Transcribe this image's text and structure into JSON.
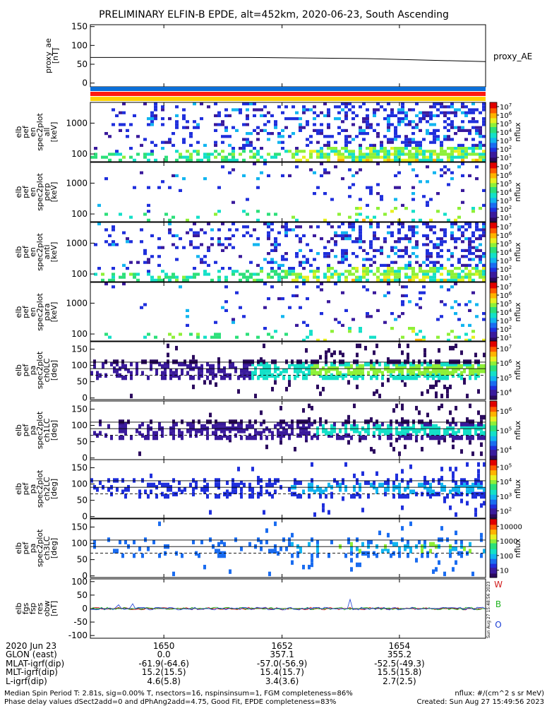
{
  "title": "PRELIMINARY ELFIN-B EPDE, alt=452km, 2020-06-23, South Ascending",
  "proxy_ae": {
    "ylabel_lines": [
      "proxy_ae",
      "[nT]"
    ],
    "yticks": [
      "150",
      "100",
      "50",
      "0"
    ],
    "legend": "proxy_AE",
    "ylim": [
      -10,
      155
    ],
    "line_points": [
      [
        0,
        68
      ],
      [
        0.4,
        68
      ],
      [
        0.7,
        65
      ],
      [
        1,
        57
      ]
    ]
  },
  "status_bars": [
    "#0a6fd8",
    "#ff1a10",
    "#ffd000"
  ],
  "energy_panels": [
    {
      "ylabel_lines": [
        "elb",
        "pef",
        "en",
        "spec2plot",
        "all",
        "[keV]"
      ],
      "yticks": [
        "1000",
        "100"
      ],
      "cbar_label": "nflux",
      "cbar_ticks": [
        "10^1",
        "10^2",
        "10^3",
        "10^4",
        "10^5",
        "10^6",
        "10^7"
      ],
      "density": 0.9,
      "green": 0.85
    },
    {
      "ylabel_lines": [
        "elb",
        "pef",
        "en",
        "spec2plot",
        "perp",
        "[keV]"
      ],
      "yticks": [
        "1000",
        "100"
      ],
      "cbar_label": "nflux",
      "cbar_ticks": [
        "10^1",
        "10^2",
        "10^3",
        "10^4",
        "10^5",
        "10^6",
        "10^7"
      ],
      "density": 0.2,
      "green": 0.15
    },
    {
      "ylabel_lines": [
        "elb",
        "pef",
        "en",
        "spec2plot",
        "anti",
        "[keV]"
      ],
      "yticks": [
        "1000",
        "100"
      ],
      "cbar_label": "nflux",
      "cbar_ticks": [
        "10^1",
        "10^2",
        "10^3",
        "10^4",
        "10^5",
        "10^6",
        "10^7"
      ],
      "density": 0.85,
      "green": 0.8
    },
    {
      "ylabel_lines": [
        "elb",
        "pef",
        "en",
        "spec2plot",
        "para",
        "[keV]"
      ],
      "yticks": [
        "1000",
        "100"
      ],
      "cbar_label": "nflux",
      "cbar_ticks": [
        "10^1",
        "10^2",
        "10^3",
        "10^4",
        "10^5",
        "10^6",
        "10^7"
      ],
      "density": 0.2,
      "green": 0.2
    }
  ],
  "pa_panels": [
    {
      "ylabel_lines": [
        "elb",
        "pef",
        "pa",
        "spec2plot",
        "ch0LC",
        "[deg]"
      ],
      "yticks": [
        "150",
        "100",
        "50",
        "0"
      ],
      "cbar_label": "nflux",
      "cbar_ticks": [
        "10^4",
        "10^5",
        "10^6",
        "10^7"
      ],
      "intensity": 1.0
    },
    {
      "ylabel_lines": [
        "elb",
        "pef",
        "pa",
        "spec2plot",
        "ch1LC",
        "[deg]"
      ],
      "yticks": [
        "150",
        "100",
        "50",
        "0"
      ],
      "cbar_label": "nflux",
      "cbar_ticks": [
        "10^4",
        "10^5",
        "10^6"
      ],
      "intensity": 0.85
    },
    {
      "ylabel_lines": [
        "elb",
        "pef",
        "pa",
        "spec2plot",
        "ch2LC",
        "[deg]"
      ],
      "yticks": [
        "150",
        "100",
        "50",
        "0"
      ],
      "cbar_label": "nflux",
      "cbar_ticks": [
        "10^2",
        "10^3",
        "10^4",
        "10^5"
      ],
      "intensity": 0.55
    },
    {
      "ylabel_lines": [
        "elb",
        "pef",
        "pa",
        "spec2plot",
        "ch3LC",
        "[deg]"
      ],
      "yticks": [
        "150",
        "100",
        "50",
        "0"
      ],
      "cbar_label": "nflux",
      "cbar_ticks": [
        "10",
        "100",
        "1000",
        "10000"
      ],
      "intensity": 0.35
    }
  ],
  "fgm_panel": {
    "ylabel_lines": [
      "elb",
      "fgs",
      "fsp",
      "res",
      "obw",
      "[nT]"
    ],
    "yticks": [
      "100",
      "50",
      "0",
      "-50",
      "-100"
    ],
    "ylim": [
      -110,
      110
    ],
    "legend": [
      {
        "label": "W",
        "color": "#d11b1b"
      },
      {
        "label": "B",
        "color": "#1fb31f"
      },
      {
        "label": "O",
        "color": "#1a3dd6"
      }
    ],
    "stamp": "Sun Aug 27 15:48:56 2023"
  },
  "x_axis": {
    "tick_positions": [
      0.186,
      0.485,
      0.782
    ],
    "tick_labels": [
      "1650",
      "1652",
      "1654"
    ]
  },
  "ephemeris": {
    "row_labels": [
      "2020 Jun 23",
      "GLON (east)",
      "MLAT-igrf(dip)",
      "MLT-igrf(dip)",
      "L-igrf(dip)"
    ],
    "columns": [
      [
        "1650",
        "0.0",
        "-61.9(-64.6)",
        "15.2(15.5)",
        "4.6(5.8)"
      ],
      [
        "1652",
        "357.1",
        "-57.0(-56.9)",
        "15.4(15.7)",
        "3.4(3.6)"
      ],
      [
        "1654",
        "355.2",
        "-52.5(-49.3)",
        "15.5(15.8)",
        "2.7(2.5)"
      ]
    ]
  },
  "footer": {
    "line1": "Median Spin Period T: 2.81s, sig=0.00% T, nsectors=16, nspinsinsum=1, FGM completeness=86%",
    "line2": "Phase delay values dSect2add=0 and dPhAng2add=4.75, Good Fit, EPDE completeness=83%",
    "right1": "nflux: #/(cm^2 s sr MeV)",
    "right2": "Created: Sun Aug 27 15:49:56 2023"
  }
}
